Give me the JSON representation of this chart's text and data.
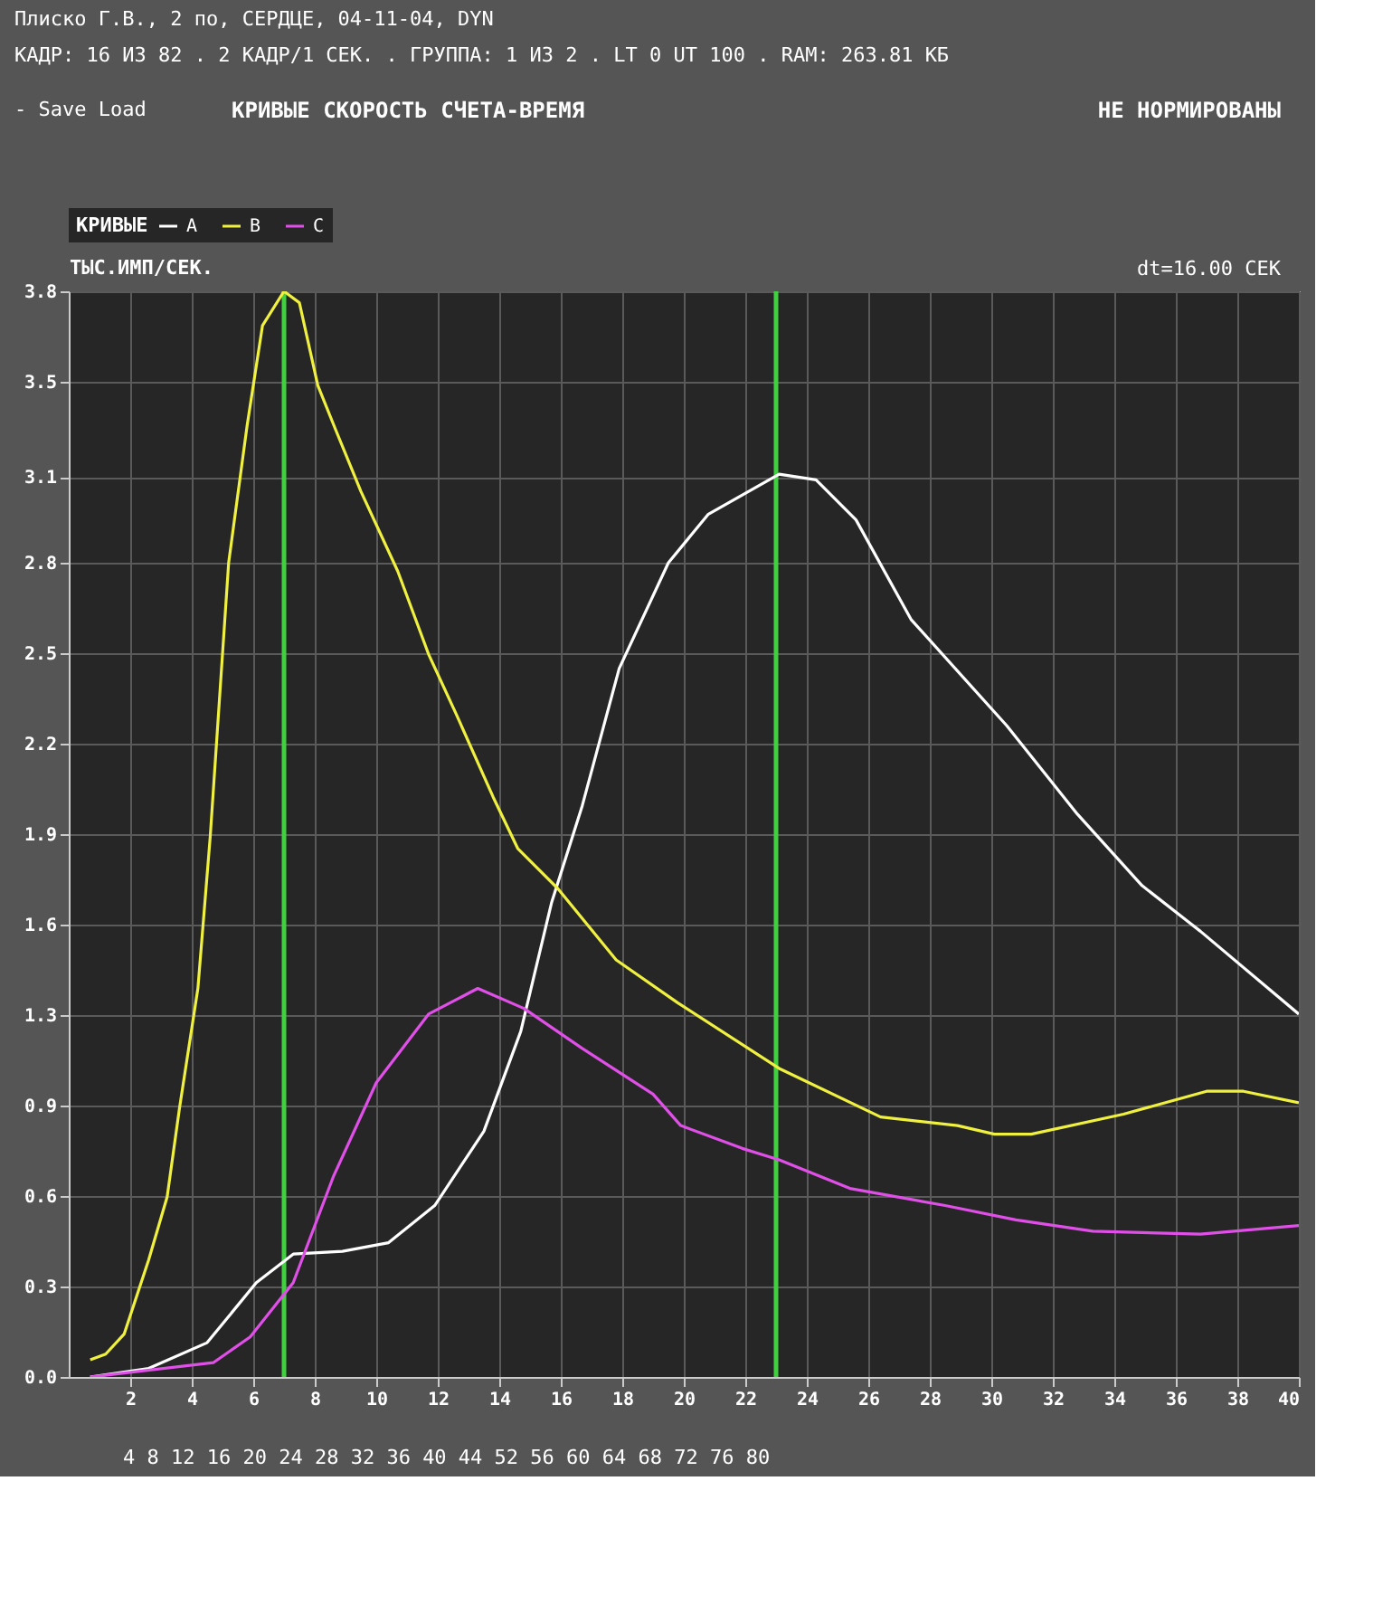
{
  "chart_data": {
    "type": "line",
    "title": "КРИВЫЕ СКОРОСТЬ СЧЕТА-ВРЕМЯ",
    "subtitle": "НЕ НОРМИРОВАНЫ",
    "ylabel": "ТЫС.ИМП/СЕК.",
    "legend_title": "КРИВЫЕ",
    "annotations": [
      "Плиско Г.В., 2 по, СЕРДЦЕ, 04-11-04, DYN",
      "КАДР: 16 ИЗ 82 . 2 КАДР/1 СЕК. . ГРУППА: 1 ИЗ 2 . LT  0 UT 100 . RAM: 263.81 КБ",
      "-  Save  Load",
      "dt=16.00 СЕК",
      "4   8   12   16   20   24   28   32   36   40   44   52   56   60   64   68   72   76   80"
    ],
    "series": [
      {
        "name": "A",
        "color": "#ffffff",
        "x": [
          0.7,
          2.6,
          4.5,
          6.1,
          7.3,
          8.9,
          10.4,
          11.9,
          13.5,
          14.7,
          15.7,
          16.7,
          17.9,
          19.5,
          20.8,
          23.1,
          24.3,
          25.6,
          27.4,
          30.5,
          32.8,
          34.9,
          36.8,
          40
        ],
        "values": [
          0.0,
          0.03,
          0.12,
          0.33,
          0.43,
          0.44,
          0.47,
          0.6,
          0.86,
          1.21,
          1.66,
          2.0,
          2.48,
          2.85,
          3.02,
          3.16,
          3.14,
          3.0,
          2.65,
          2.28,
          1.97,
          1.72,
          1.56,
          1.27
        ]
      },
      {
        "name": "B",
        "color": "#f0f040",
        "x": [
          0.7,
          1.2,
          1.8,
          2.6,
          3.2,
          3.6,
          4.2,
          4.6,
          5.2,
          5.8,
          6.3,
          7.0,
          7.5,
          8.1,
          8.7,
          9.5,
          10.7,
          11.7,
          12.6,
          13.8,
          14.6,
          15.9,
          17.8,
          19.8,
          23.1,
          26.4,
          28.9,
          30.1,
          31.3,
          34.3,
          37.0,
          38.2,
          40
        ],
        "values": [
          0.06,
          0.08,
          0.15,
          0.41,
          0.63,
          0.94,
          1.36,
          1.89,
          2.85,
          3.33,
          3.68,
          3.8,
          3.76,
          3.47,
          3.31,
          3.1,
          2.82,
          2.53,
          2.32,
          2.03,
          1.85,
          1.71,
          1.46,
          1.31,
          1.08,
          0.91,
          0.88,
          0.85,
          0.85,
          0.92,
          1.0,
          1.0,
          0.96
        ]
      },
      {
        "name": "C",
        "color": "#e050e8",
        "x": [
          0.7,
          4.7,
          5.9,
          7.3,
          8.6,
          10.0,
          11.7,
          13.3,
          14.8,
          16.7,
          19.0,
          19.9,
          21.9,
          23.1,
          25.4,
          28.5,
          30.8,
          33.3,
          36.8,
          40
        ],
        "values": [
          0.0,
          0.05,
          0.14,
          0.33,
          0.7,
          1.03,
          1.27,
          1.36,
          1.29,
          1.15,
          0.99,
          0.88,
          0.8,
          0.76,
          0.66,
          0.6,
          0.55,
          0.51,
          0.5,
          0.53
        ]
      }
    ],
    "xlim": [
      0,
      40
    ],
    "xticks": [
      2,
      4,
      6,
      8,
      10,
      12,
      14,
      16,
      18,
      20,
      22,
      24,
      26,
      28,
      30,
      32,
      34,
      36,
      38,
      40
    ],
    "ylim": [
      0,
      3.8
    ],
    "yticks": [
      {
        "value": 0,
        "label": "0.0"
      },
      {
        "value": 0.3167,
        "label": "0.3"
      },
      {
        "value": 0.6333,
        "label": "0.6"
      },
      {
        "value": 0.95,
        "label": "0.9"
      },
      {
        "value": 1.2667,
        "label": "1.3"
      },
      {
        "value": 1.5833,
        "label": "1.6"
      },
      {
        "value": 1.9,
        "label": "1.9"
      },
      {
        "value": 2.2167,
        "label": "2.2"
      },
      {
        "value": 2.5333,
        "label": "2.5"
      },
      {
        "value": 2.85,
        "label": "2.8"
      },
      {
        "value": 3.15,
        "label": "3.1"
      },
      {
        "value": 3.4833,
        "label": "3.5"
      },
      {
        "value": 3.8,
        "label": "3.8"
      }
    ],
    "ref_lines": [
      {
        "axis": "x",
        "value": 7,
        "color": "#40d040"
      },
      {
        "axis": "x",
        "value": 23,
        "color": "#40d040"
      }
    ],
    "grid": true,
    "legend": "top left",
    "line_style": "solid",
    "marker": "none"
  }
}
